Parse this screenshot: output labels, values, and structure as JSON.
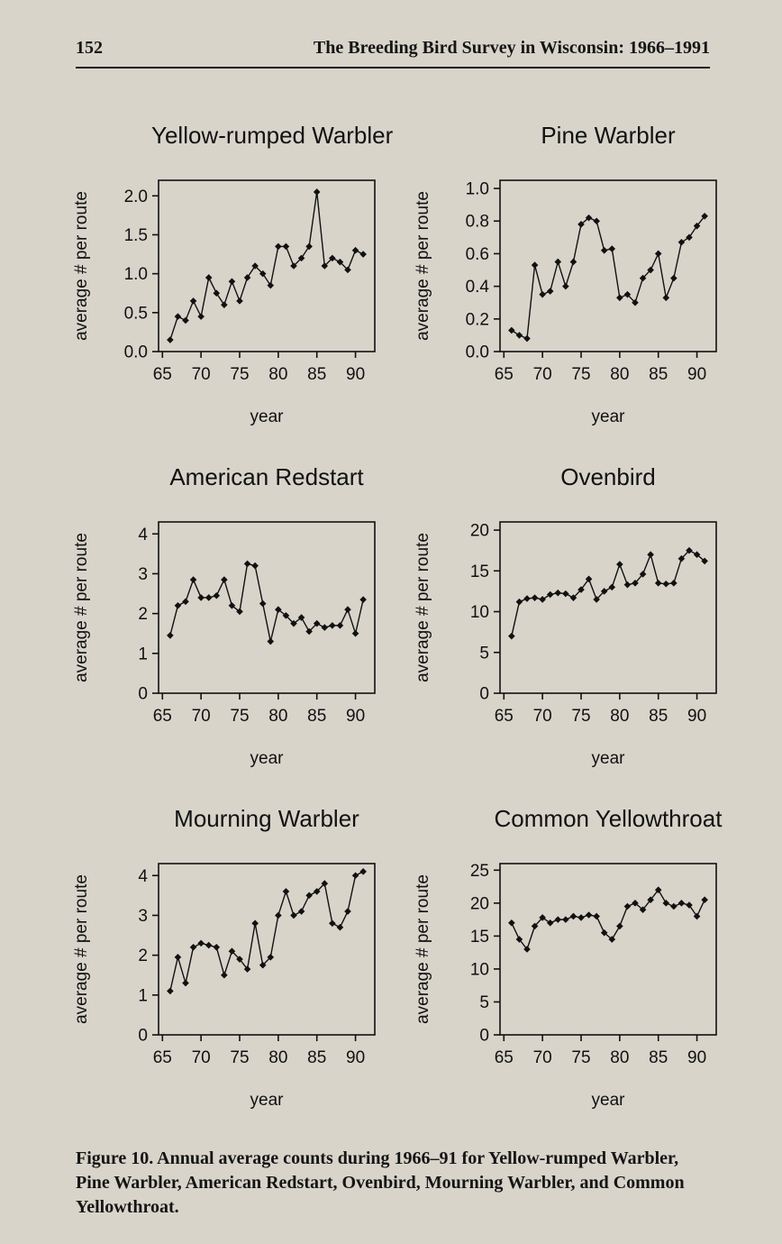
{
  "header": {
    "page_number": "152",
    "title": "The Breeding Bird Survey in Wisconsin: 1966–1991"
  },
  "caption": "Figure 10. Annual average counts during 1966–91 for Yellow-rumped Warbler, Pine Warbler, American Redstart, Ovenbird, Mourning Warbler, and Common Yellowthroat.",
  "colors": {
    "page_bg": "#d8d4ca",
    "ink": "#111111"
  },
  "chart_data": [
    {
      "type": "line",
      "title": "Yellow-rumped Warbler",
      "xlabel": "year",
      "ylabel": "average # per route",
      "marker": "diamond",
      "x": [
        1966,
        1967,
        1968,
        1969,
        1970,
        1971,
        1972,
        1973,
        1974,
        1975,
        1976,
        1977,
        1978,
        1979,
        1980,
        1981,
        1982,
        1983,
        1984,
        1985,
        1986,
        1987,
        1988,
        1989,
        1990,
        1991
      ],
      "values": [
        0.15,
        0.45,
        0.4,
        0.65,
        0.45,
        0.95,
        0.75,
        0.6,
        0.9,
        0.65,
        0.95,
        1.1,
        1.0,
        0.85,
        1.35,
        1.35,
        1.1,
        1.2,
        1.35,
        2.05,
        1.1,
        1.2,
        1.15,
        1.05,
        1.3,
        1.25
      ],
      "xlim": [
        1964.5,
        1992.5
      ],
      "ylim": [
        0,
        2.2
      ],
      "xticks": [
        1965,
        1970,
        1975,
        1980,
        1985,
        1990
      ],
      "xtick_labels": [
        "65",
        "70",
        "75",
        "80",
        "85",
        "90"
      ],
      "yticks": [
        0,
        0.5,
        1.0,
        1.5,
        2.0
      ],
      "ytick_labels": [
        "0.0",
        "0.5",
        "1.0",
        "1.5",
        "2.0"
      ]
    },
    {
      "type": "line",
      "title": "Pine Warbler",
      "xlabel": "year",
      "ylabel": "average # per route",
      "marker": "diamond",
      "x": [
        1966,
        1967,
        1968,
        1969,
        1970,
        1971,
        1972,
        1973,
        1974,
        1975,
        1976,
        1977,
        1978,
        1979,
        1980,
        1981,
        1982,
        1983,
        1984,
        1985,
        1986,
        1987,
        1988,
        1989,
        1990,
        1991
      ],
      "values": [
        0.13,
        0.1,
        0.08,
        0.53,
        0.35,
        0.37,
        0.55,
        0.4,
        0.55,
        0.78,
        0.82,
        0.8,
        0.62,
        0.63,
        0.33,
        0.35,
        0.3,
        0.45,
        0.5,
        0.6,
        0.33,
        0.45,
        0.67,
        0.7,
        0.77,
        0.83
      ],
      "xlim": [
        1964.5,
        1992.5
      ],
      "ylim": [
        0,
        1.05
      ],
      "xticks": [
        1965,
        1970,
        1975,
        1980,
        1985,
        1990
      ],
      "xtick_labels": [
        "65",
        "70",
        "75",
        "80",
        "85",
        "90"
      ],
      "yticks": [
        0,
        0.2,
        0.4,
        0.6,
        0.8,
        1.0
      ],
      "ytick_labels": [
        "0.0",
        "0.2",
        "0.4",
        "0.6",
        "0.8",
        "1.0"
      ]
    },
    {
      "type": "line",
      "title": "American Redstart",
      "xlabel": "year",
      "ylabel": "average # per route",
      "marker": "diamond",
      "x": [
        1966,
        1967,
        1968,
        1969,
        1970,
        1971,
        1972,
        1973,
        1974,
        1975,
        1976,
        1977,
        1978,
        1979,
        1980,
        1981,
        1982,
        1983,
        1984,
        1985,
        1986,
        1987,
        1988,
        1989,
        1990,
        1991
      ],
      "values": [
        1.45,
        2.2,
        2.3,
        2.85,
        2.4,
        2.4,
        2.45,
        2.85,
        2.2,
        2.05,
        3.25,
        3.2,
        2.25,
        1.3,
        2.1,
        1.95,
        1.75,
        1.9,
        1.55,
        1.75,
        1.65,
        1.7,
        1.7,
        2.1,
        1.5,
        2.35
      ],
      "xlim": [
        1964.5,
        1992.5
      ],
      "ylim": [
        0,
        4.3
      ],
      "xticks": [
        1965,
        1970,
        1975,
        1980,
        1985,
        1990
      ],
      "xtick_labels": [
        "65",
        "70",
        "75",
        "80",
        "85",
        "90"
      ],
      "yticks": [
        0,
        1,
        2,
        3,
        4
      ],
      "ytick_labels": [
        "0",
        "1",
        "2",
        "3",
        "4"
      ]
    },
    {
      "type": "line",
      "title": "Ovenbird",
      "xlabel": "year",
      "ylabel": "average # per route",
      "marker": "diamond",
      "x": [
        1966,
        1967,
        1968,
        1969,
        1970,
        1971,
        1972,
        1973,
        1974,
        1975,
        1976,
        1977,
        1978,
        1979,
        1980,
        1981,
        1982,
        1983,
        1984,
        1985,
        1986,
        1987,
        1988,
        1989,
        1990,
        1991
      ],
      "values": [
        7.0,
        11.2,
        11.6,
        11.7,
        11.5,
        12.1,
        12.3,
        12.2,
        11.7,
        12.7,
        14.0,
        11.5,
        12.5,
        13.0,
        15.8,
        13.3,
        13.5,
        14.6,
        17.0,
        13.5,
        13.4,
        13.5,
        16.5,
        17.5,
        17.0,
        16.2
      ],
      "xlim": [
        1964.5,
        1992.5
      ],
      "ylim": [
        0,
        21
      ],
      "xticks": [
        1965,
        1970,
        1975,
        1980,
        1985,
        1990
      ],
      "xtick_labels": [
        "65",
        "70",
        "75",
        "80",
        "85",
        "90"
      ],
      "yticks": [
        0,
        5,
        10,
        15,
        20
      ],
      "ytick_labels": [
        "0",
        "5",
        "10",
        "15",
        "20"
      ]
    },
    {
      "type": "line",
      "title": "Mourning Warbler",
      "xlabel": "year",
      "ylabel": "average # per route",
      "marker": "diamond",
      "x": [
        1966,
        1967,
        1968,
        1969,
        1970,
        1971,
        1972,
        1973,
        1974,
        1975,
        1976,
        1977,
        1978,
        1979,
        1980,
        1981,
        1982,
        1983,
        1984,
        1985,
        1986,
        1987,
        1988,
        1989,
        1990,
        1991
      ],
      "values": [
        1.1,
        1.95,
        1.3,
        2.2,
        2.3,
        2.25,
        2.2,
        1.5,
        2.1,
        1.9,
        1.65,
        2.8,
        1.75,
        1.95,
        3.0,
        3.6,
        3.0,
        3.1,
        3.5,
        3.6,
        3.8,
        2.8,
        2.7,
        3.1,
        4.0,
        4.1
      ],
      "xlim": [
        1964.5,
        1992.5
      ],
      "ylim": [
        0,
        4.3
      ],
      "xticks": [
        1965,
        1970,
        1975,
        1980,
        1985,
        1990
      ],
      "xtick_labels": [
        "65",
        "70",
        "75",
        "80",
        "85",
        "90"
      ],
      "yticks": [
        0,
        1,
        2,
        3,
        4
      ],
      "ytick_labels": [
        "0",
        "1",
        "2",
        "3",
        "4"
      ]
    },
    {
      "type": "line",
      "title": "Common Yellowthroat",
      "xlabel": "year",
      "ylabel": "average # per route",
      "marker": "diamond",
      "x": [
        1966,
        1967,
        1968,
        1969,
        1970,
        1971,
        1972,
        1973,
        1974,
        1975,
        1976,
        1977,
        1978,
        1979,
        1980,
        1981,
        1982,
        1983,
        1984,
        1985,
        1986,
        1987,
        1988,
        1989,
        1990,
        1991
      ],
      "values": [
        17.0,
        14.5,
        13.0,
        16.5,
        17.8,
        17.0,
        17.5,
        17.5,
        18.0,
        17.8,
        18.2,
        18.0,
        15.5,
        14.5,
        16.5,
        19.5,
        20.0,
        19.0,
        20.5,
        22.0,
        20.0,
        19.5,
        20.0,
        19.7,
        18.0,
        20.5
      ],
      "xlim": [
        1964.5,
        1992.5
      ],
      "ylim": [
        0,
        26
      ],
      "xticks": [
        1965,
        1970,
        1975,
        1980,
        1985,
        1990
      ],
      "xtick_labels": [
        "65",
        "70",
        "75",
        "80",
        "85",
        "90"
      ],
      "yticks": [
        0,
        5,
        10,
        15,
        20,
        25
      ],
      "ytick_labels": [
        "0",
        "5",
        "10",
        "15",
        "20",
        "25"
      ]
    }
  ]
}
